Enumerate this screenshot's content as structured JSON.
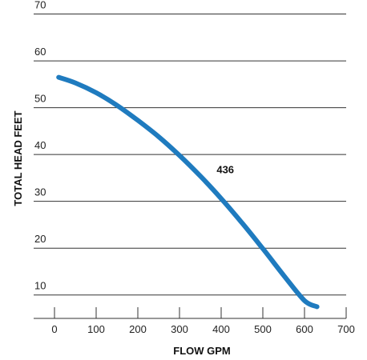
{
  "chart_data": {
    "type": "line",
    "title": "",
    "xlabel": "FLOW GPM",
    "ylabel": "TOTAL HEAD FEET",
    "xlim": [
      -50,
      700
    ],
    "ylim": [
      5,
      73
    ],
    "x_ticks": [
      0,
      100,
      200,
      300,
      400,
      500,
      600,
      700
    ],
    "y_ticks": [
      10,
      20,
      30,
      40,
      50,
      60,
      70
    ],
    "grid": "horizontal",
    "legend": "none",
    "series": [
      {
        "name": "436",
        "color": "#1f7bbf",
        "x": [
          10,
          50,
          100,
          150,
          200,
          250,
          300,
          350,
          400,
          450,
          500,
          550,
          600,
          630
        ],
        "y": [
          56.5,
          55.3,
          53.2,
          50.5,
          47.3,
          43.8,
          39.8,
          35.4,
          30.6,
          25.4,
          19.9,
          14.2,
          8.8,
          7.5
        ]
      }
    ],
    "annotations": [
      {
        "text": "436",
        "x": 410,
        "y": 36
      }
    ]
  }
}
